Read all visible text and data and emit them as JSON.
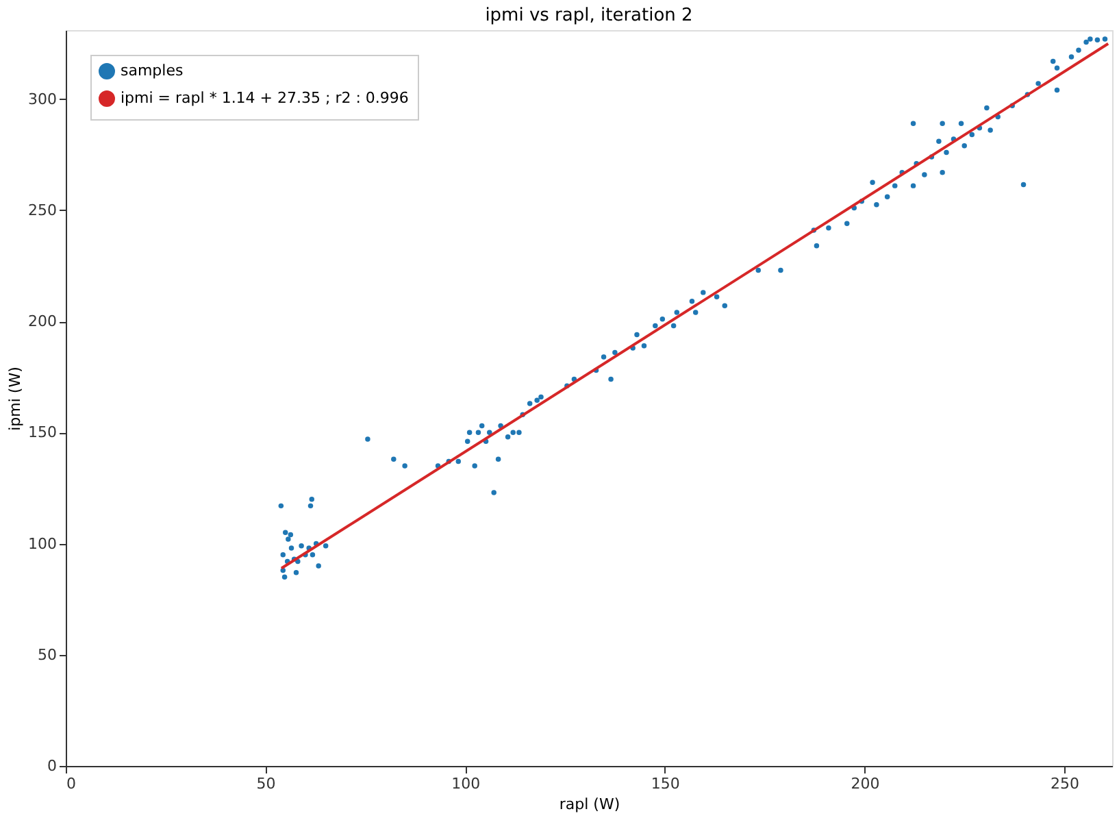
{
  "chart_data": {
    "type": "scatter",
    "title": "ipmi vs rapl, iteration 2",
    "xlabel": "rapl (W)",
    "ylabel": "ipmi (W)",
    "xlim": [
      0,
      262
    ],
    "ylim": [
      0,
      331
    ],
    "xticks": [
      0,
      50,
      100,
      150,
      200,
      250
    ],
    "yticks": [
      0,
      50,
      100,
      150,
      200,
      250,
      300
    ],
    "grid": false,
    "legend": "top left",
    "series": [
      {
        "name": "samples",
        "marker": "circle",
        "color": "#1f77b4",
        "x": [
          53.9,
          54.8,
          54.4,
          55,
          55.7,
          56.3,
          54.4,
          57.2,
          58.1,
          59,
          60,
          60.9,
          61.3,
          61.6,
          61.8,
          62.7,
          63.3,
          65.1,
          55.5,
          57.7,
          56.5,
          75.6,
          82.1,
          84.9,
          93.2,
          95.9,
          98.3,
          100.6,
          101.1,
          102.4,
          103.3,
          104.2,
          105.2,
          106.1,
          107.2,
          108.3,
          108.9,
          110.7,
          112,
          113.5,
          114.4,
          116.2,
          119,
          118,
          125.5,
          127.3,
          132.8,
          134.7,
          136.5,
          137.5,
          142,
          143,
          144.8,
          147.6,
          149.4,
          152.2,
          153,
          156.8,
          157.7,
          159.6,
          165,
          163,
          173.4,
          179,
          187.3,
          188,
          191,
          195.6,
          197.4,
          199.3,
          202,
          203,
          205.7,
          207.6,
          209.4,
          212.2,
          213,
          215,
          216.8,
          218.6,
          219.5,
          220.5,
          222.3,
          224.2,
          225,
          226.9,
          228.8,
          230.6,
          231.5,
          233.4,
          237,
          239.8,
          240.8,
          243.5,
          247.2,
          248.2,
          248.2,
          251.8,
          255.5,
          256.5,
          258.3,
          260.2,
          253.6,
          212.2,
          219.5
        ],
        "values": [
          117,
          85,
          88,
          105,
          102,
          104,
          95,
          93,
          92,
          99,
          95,
          98,
          117,
          120,
          95,
          100,
          90,
          99,
          92,
          87,
          98,
          147,
          138,
          135,
          135,
          137,
          137,
          146,
          150,
          135,
          150,
          153,
          146,
          150,
          123,
          138,
          153,
          148,
          150,
          150,
          158,
          163,
          166,
          164.5,
          171,
          174,
          178,
          184,
          174,
          186,
          188,
          194,
          189,
          198,
          201,
          198,
          204,
          209,
          204,
          213,
          207,
          211,
          223,
          223,
          241,
          234,
          242,
          244,
          251,
          254,
          262.5,
          252.5,
          256,
          261,
          267,
          261,
          271,
          266,
          274,
          281,
          267,
          276,
          282,
          289,
          279,
          284,
          287,
          296,
          286,
          292,
          297,
          261.5,
          302,
          307,
          317,
          304,
          314,
          319,
          325.6,
          327,
          326.6,
          327,
          322,
          289,
          289
        ]
      },
      {
        "name": "ipmi = rapl * 1.14 + 27.35 ; r2 : 0.996",
        "type": "line",
        "color": "#d62728",
        "x": [
          54,
          261
        ],
        "values": [
          88.9,
          324.9
        ]
      }
    ]
  }
}
